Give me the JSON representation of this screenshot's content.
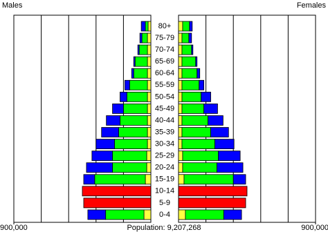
{
  "chart_data": {
    "type": "population-pyramid",
    "left_label": "Males",
    "right_label": "Females",
    "footer": "Population: 9,207,268",
    "categories": [
      "80+",
      "75-79",
      "70-74",
      "65-69",
      "60-64",
      "55-59",
      "50-54",
      "45-49",
      "40-44",
      "35-39",
      "30-34",
      "25-29",
      "20-24",
      "15-19",
      "10-14",
      "5-9",
      "0-4"
    ],
    "xlim": [
      0,
      900000
    ],
    "xticks": [
      {
        "value": 900000,
        "label": "900,000"
      }
    ],
    "grid_values": [
      180000,
      360000,
      540000,
      720000
    ],
    "left_series": [
      {
        "color": "#ffff40",
        "values": [
          18000,
          22500,
          22500,
          22500,
          22500,
          22500,
          22500,
          22500,
          22500,
          22500,
          22500,
          27000,
          27000,
          36000,
          0,
          0,
          45000
        ]
      },
      {
        "color": "#00ff00",
        "values": [
          18000,
          36000,
          54000,
          81000,
          90000,
          117000,
          135000,
          157500,
          180000,
          189000,
          216000,
          225000,
          225000,
          333000,
          0,
          0,
          252000
        ]
      },
      {
        "color": "#0000ff",
        "values": [
          27000,
          13500,
          9000,
          9000,
          13500,
          31500,
          45000,
          72000,
          90000,
          112500,
          121500,
          135000,
          171000,
          72000,
          0,
          0,
          117000
        ]
      },
      {
        "color": "#ff0000",
        "values": [
          0,
          0,
          0,
          0,
          0,
          0,
          0,
          0,
          0,
          0,
          0,
          0,
          0,
          0,
          450000,
          441000,
          0
        ]
      }
    ],
    "right_series": [
      {
        "color": "#ffff40",
        "values": [
          27000,
          22500,
          22500,
          22500,
          22500,
          22500,
          22500,
          22500,
          22500,
          22500,
          22500,
          27000,
          27000,
          36000,
          0,
          0,
          45000
        ]
      },
      {
        "color": "#00ff00",
        "values": [
          45000,
          45000,
          63000,
          90000,
          99000,
          112500,
          126000,
          144000,
          171000,
          189000,
          216000,
          234000,
          225000,
          324000,
          0,
          0,
          252000
        ]
      },
      {
        "color": "#0000ff",
        "values": [
          18000,
          18000,
          9000,
          9000,
          18000,
          31500,
          63000,
          90000,
          99000,
          117000,
          126000,
          144000,
          171000,
          81000,
          0,
          0,
          117000
        ]
      },
      {
        "color": "#ff0000",
        "values": [
          0,
          0,
          0,
          0,
          0,
          0,
          0,
          0,
          0,
          0,
          0,
          0,
          0,
          0,
          450000,
          441000,
          0
        ]
      }
    ]
  }
}
